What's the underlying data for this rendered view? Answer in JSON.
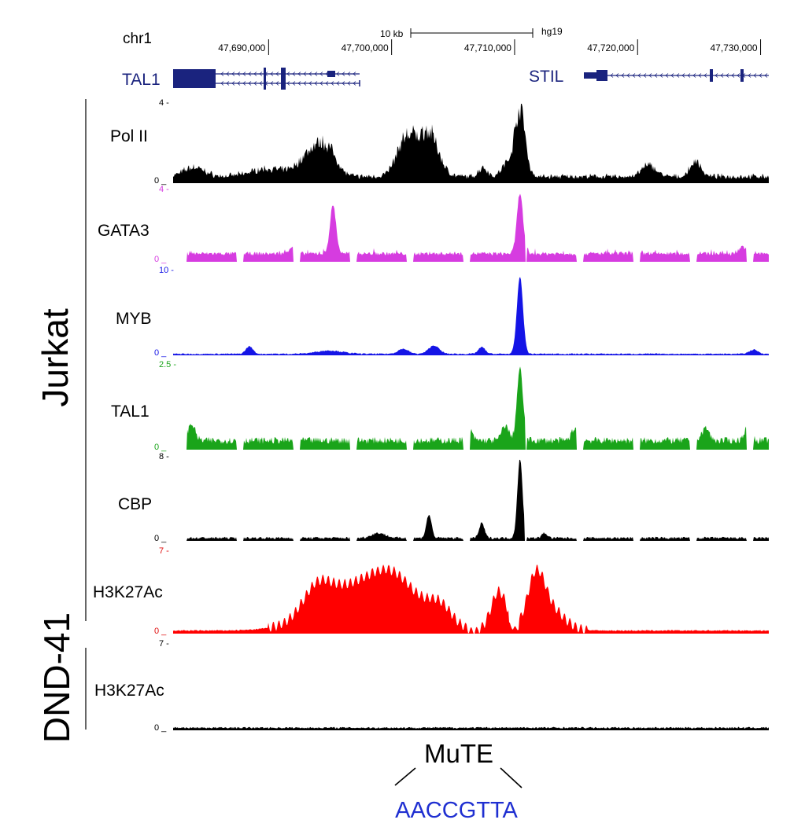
{
  "header": {
    "chrom": "chr1",
    "scale_label": "10 kb",
    "assembly": "hg19",
    "coordinates": [
      "47,690,000",
      "47,700,000",
      "47,710,000",
      "47,720,000",
      "47,730,000"
    ]
  },
  "genes": [
    {
      "name": "TAL1",
      "strand": "-",
      "color": "#1a237e"
    },
    {
      "name": "STIL",
      "strand": "-",
      "color": "#1a237e"
    }
  ],
  "groups": [
    {
      "name": "Jurkat",
      "tracks": 6
    },
    {
      "name": "DND-41",
      "tracks": 1
    }
  ],
  "tracks": [
    {
      "name": "Pol II",
      "max": "4",
      "min": "0",
      "color": "#000000",
      "max_label_color": "#000000",
      "min_label_color": "#000000",
      "peak_centers_kb": [
        -1.5,
        3.8,
        11.3,
        13.1,
        20.5
      ],
      "peak_heights": [
        0.3,
        0.55,
        0.62,
        0.62,
        1.0
      ]
    },
    {
      "name": "GATA3",
      "max": "4",
      "min": "0",
      "color": "#d63ce0",
      "max_label_color": "#d63ce0",
      "min_label_color": "#d63ce0",
      "peak_centers_kb": [
        5.3,
        20.5
      ],
      "peak_heights": [
        0.68,
        0.9
      ]
    },
    {
      "name": "MYB",
      "max": "10",
      "min": "0",
      "color": "#1414e6",
      "max_label_color": "#1414e6",
      "min_label_color": "#1414e6",
      "peak_centers_kb": [
        20.5
      ],
      "peak_heights": [
        0.92
      ]
    },
    {
      "name": "TAL1",
      "max": "2.5",
      "min": "0",
      "color": "#1aa41a",
      "max_label_color": "#1aa41a",
      "min_label_color": "#1aa41a",
      "peak_centers_kb": [
        20.5
      ],
      "peak_heights": [
        0.88
      ]
    },
    {
      "name": "CBP",
      "max": "8",
      "min": "0",
      "color": "#000000",
      "max_label_color": "#000000",
      "min_label_color": "#000000",
      "peak_centers_kb": [
        13.1,
        17.4,
        20.5
      ],
      "peak_heights": [
        0.3,
        0.2,
        0.95
      ]
    },
    {
      "name": "H3K27Ac",
      "max": "7",
      "min": "0",
      "color": "#ff0000",
      "max_label_color": "#e01010",
      "min_label_color": "#e01010",
      "peak_centers_kb": [
        9.3,
        18.8,
        21.8
      ],
      "peak_heights": [
        0.95,
        0.75,
        0.8
      ]
    },
    {
      "name": "H3K27Ac",
      "max": "7",
      "min": "0",
      "color": "#000000",
      "max_label_color": "#000000",
      "min_label_color": "#000000",
      "peak_centers_kb": [],
      "peak_heights": []
    }
  ],
  "annotation": {
    "label": "MuTE",
    "sequence": "AACCGTTA",
    "sequence_color": "#1f2fd1"
  }
}
